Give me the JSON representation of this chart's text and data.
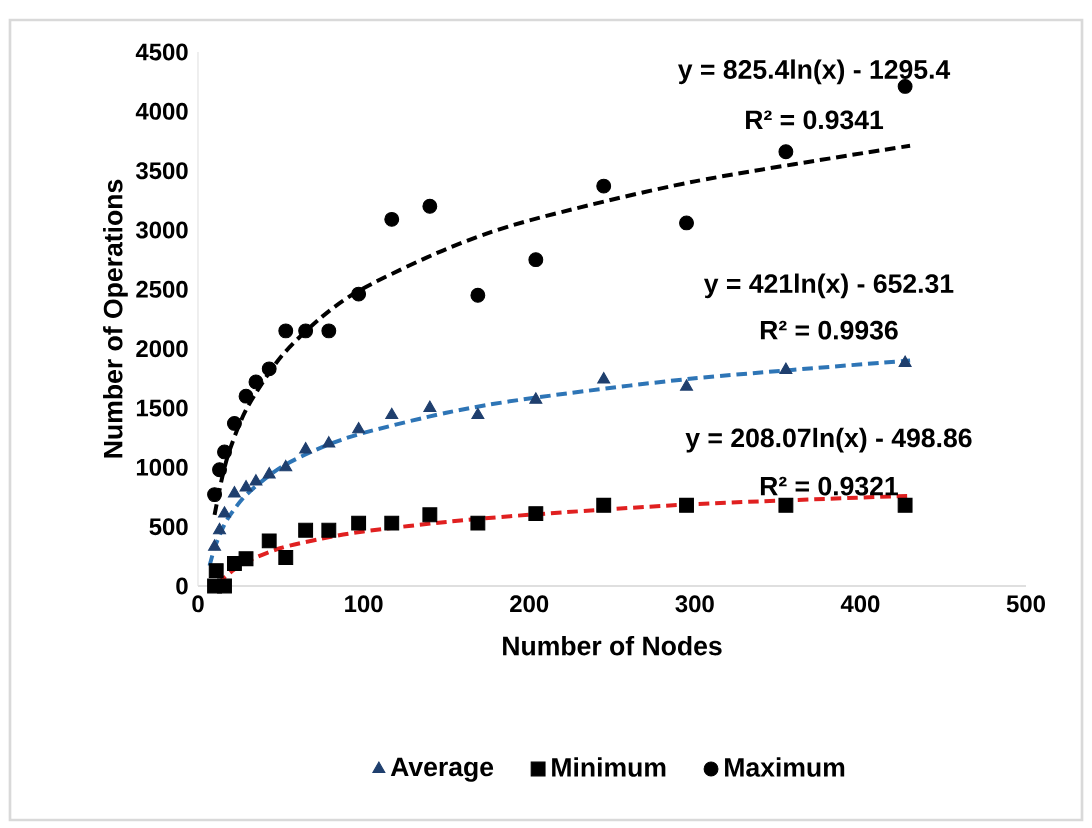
{
  "chart_data": {
    "type": "scatter",
    "xlabel": "Number of Nodes",
    "ylabel": "Number of Operations",
    "xlim": [
      0,
      500
    ],
    "ylim": [
      0,
      4500
    ],
    "xticks": [
      0,
      100,
      200,
      300,
      400,
      500
    ],
    "yticks": [
      0,
      500,
      1000,
      1500,
      2000,
      2500,
      3000,
      3500,
      4000,
      4500
    ],
    "grid": false,
    "legend": "bottom",
    "series": [
      {
        "name": "Average",
        "marker": "triangle",
        "color": "#1f3f6e",
        "x": [
          10,
          13,
          16,
          22,
          29,
          35,
          43,
          53,
          65,
          79,
          97,
          117,
          140,
          169,
          204,
          245,
          295,
          355,
          427
        ],
        "values": [
          330,
          470,
          610,
          780,
          830,
          880,
          940,
          1000,
          1150,
          1200,
          1320,
          1440,
          1500,
          1440,
          1570,
          1740,
          1680,
          1820,
          1880
        ]
      },
      {
        "name": "Minimum",
        "marker": "square",
        "color": "#000000",
        "x": [
          10,
          11,
          16,
          22,
          29,
          43,
          53,
          65,
          79,
          97,
          117,
          140,
          169,
          204,
          245,
          295,
          355,
          427
        ],
        "values": [
          0,
          130,
          0,
          190,
          230,
          380,
          240,
          470,
          470,
          530,
          530,
          600,
          530,
          610,
          680,
          680,
          680,
          680
        ]
      },
      {
        "name": "Maximum",
        "marker": "circle",
        "color": "#000000",
        "x": [
          10,
          13,
          16,
          22,
          29,
          35,
          43,
          53,
          65,
          79,
          97,
          117,
          140,
          169,
          204,
          245,
          295,
          355,
          427
        ],
        "values": [
          770,
          980,
          1130,
          1370,
          1600,
          1720,
          1830,
          2150,
          2150,
          2150,
          2460,
          3090,
          3200,
          2450,
          2750,
          3370,
          3060,
          3660,
          4210
        ]
      },
      {
        "type": "line",
        "marker": "none",
        "line_style": "dashed",
        "color": "#000000",
        "x": [
          10,
          15,
          20,
          30,
          50,
          75,
          100,
          150,
          200,
          300,
          430
        ],
        "values": [
          600,
          940,
          1180,
          1510,
          1930,
          2270,
          2510,
          2840,
          3080,
          3410,
          3710
        ]
      },
      {
        "type": "line",
        "marker": "none",
        "line_style": "dashed",
        "color": "#2e75b6",
        "x": [
          7,
          10,
          15,
          20,
          30,
          50,
          75,
          100,
          150,
          200,
          300,
          430
        ],
        "values": [
          170,
          320,
          490,
          610,
          780,
          1000,
          1170,
          1290,
          1460,
          1580,
          1750,
          1900
        ]
      },
      {
        "type": "line",
        "marker": "none",
        "line_style": "dashed",
        "color": "#e02020",
        "x": [
          12,
          15,
          20,
          30,
          50,
          75,
          100,
          150,
          200,
          300,
          430
        ],
        "values": [
          20,
          60,
          120,
          210,
          320,
          400,
          460,
          540,
          600,
          690,
          760
        ]
      }
    ],
    "annotations": [
      "y = 825.4ln(x) - 1295.4",
      "R² = 0.9341",
      "y = 421ln(x) - 652.31",
      "R² = 0.9936",
      "y = 208.07ln(x) - 498.86",
      "R² = 0.9321"
    ]
  }
}
